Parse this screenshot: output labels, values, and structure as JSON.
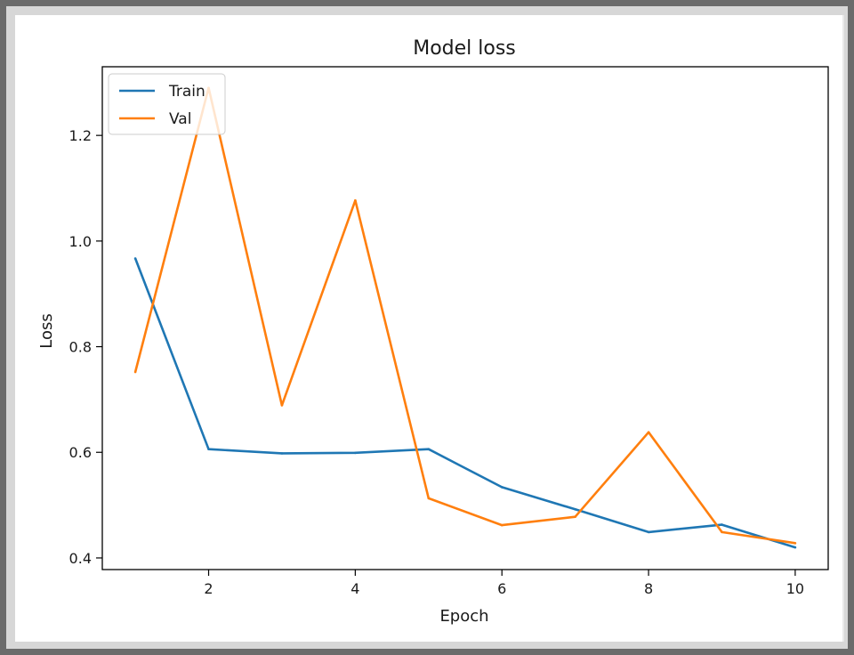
{
  "chart_data": {
    "type": "line",
    "title": "Model loss",
    "xlabel": "Epoch",
    "ylabel": "Loss",
    "xlim": [
      0.55,
      10.45
    ],
    "ylim": [
      0.378,
      1.33
    ],
    "xticks": [
      2,
      4,
      6,
      8,
      10
    ],
    "yticks": [
      0.4,
      0.6,
      0.8,
      1.0,
      1.2
    ],
    "xtick_labels": [
      "2",
      "4",
      "6",
      "8",
      "10"
    ],
    "ytick_labels": [
      "0.4",
      "0.6",
      "0.8",
      "1.0",
      "1.2"
    ],
    "grid": false,
    "legend_position": "top-left",
    "x": [
      1,
      2,
      3,
      4,
      5,
      6,
      7,
      8,
      9,
      10
    ],
    "series": [
      {
        "name": "Train",
        "color": "#1f77b4",
        "values": [
          0.967,
          0.606,
          0.598,
          0.599,
          0.606,
          0.534,
          0.492,
          0.449,
          0.463,
          0.42
        ]
      },
      {
        "name": "Val",
        "color": "#ff7f0e",
        "values": [
          0.752,
          1.29,
          0.689,
          1.077,
          0.513,
          0.462,
          0.478,
          0.638,
          0.449,
          0.428
        ]
      }
    ]
  }
}
